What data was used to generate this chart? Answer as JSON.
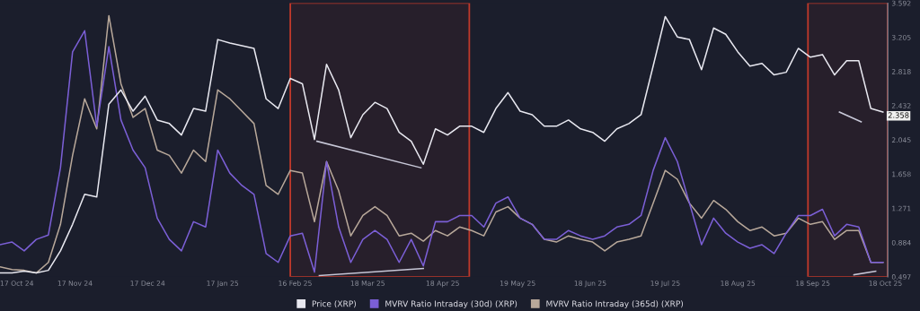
{
  "chart_data": {
    "type": "line",
    "legend": "bottom",
    "grid": false,
    "tick_labels": "xy",
    "x": [
      "2024-10-17",
      "2024-10-22",
      "2024-10-27",
      "2024-11-01",
      "2024-11-06",
      "2024-11-11",
      "2024-11-16",
      "2024-11-21",
      "2024-11-26",
      "2024-12-01",
      "2024-12-06",
      "2024-12-11",
      "2024-12-16",
      "2024-12-21",
      "2024-12-26",
      "2024-12-31",
      "2025-01-05",
      "2025-01-10",
      "2025-01-15",
      "2025-01-20",
      "2025-01-25",
      "2025-01-30",
      "2025-02-04",
      "2025-02-09",
      "2025-02-14",
      "2025-02-19",
      "2025-02-24",
      "2025-03-01",
      "2025-03-06",
      "2025-03-11",
      "2025-03-16",
      "2025-03-21",
      "2025-03-26",
      "2025-03-31",
      "2025-04-05",
      "2025-04-10",
      "2025-04-15",
      "2025-04-20",
      "2025-04-25",
      "2025-04-30",
      "2025-05-05",
      "2025-05-10",
      "2025-05-15",
      "2025-05-20",
      "2025-05-25",
      "2025-05-30",
      "2025-06-04",
      "2025-06-09",
      "2025-06-14",
      "2025-06-19",
      "2025-06-24",
      "2025-06-29",
      "2025-07-04",
      "2025-07-09",
      "2025-07-14",
      "2025-07-19",
      "2025-07-24",
      "2025-07-29",
      "2025-08-03",
      "2025-08-08",
      "2025-08-13",
      "2025-08-18",
      "2025-08-23",
      "2025-08-28",
      "2025-09-02",
      "2025-09-07",
      "2025-09-12",
      "2025-09-17",
      "2025-09-22",
      "2025-09-27",
      "2025-10-02",
      "2025-10-07",
      "2025-10-12",
      "2025-10-17"
    ],
    "series": [
      {
        "name": "MVRV Ratio Intraday (365d) (XRP)",
        "color": "#b8a89a",
        "values": [
          0.61,
          0.58,
          0.57,
          0.54,
          0.66,
          1.09,
          1.87,
          2.51,
          2.17,
          3.45,
          2.68,
          2.3,
          2.4,
          1.93,
          1.87,
          1.67,
          1.93,
          1.8,
          2.61,
          2.51,
          2.37,
          2.23,
          1.53,
          1.43,
          1.7,
          1.67,
          1.12,
          1.8,
          1.47,
          0.96,
          1.19,
          1.29,
          1.19,
          0.96,
          0.99,
          0.9,
          1.02,
          0.96,
          1.06,
          1.02,
          0.96,
          1.23,
          1.29,
          1.16,
          1.09,
          0.92,
          0.89,
          0.96,
          0.92,
          0.89,
          0.79,
          0.89,
          0.92,
          0.96,
          1.33,
          1.7,
          1.6,
          1.33,
          1.16,
          1.36,
          1.26,
          1.12,
          1.02,
          1.06,
          0.96,
          0.99,
          1.16,
          1.09,
          1.12,
          0.92,
          1.02,
          1.02,
          0.66,
          0.66
        ]
      },
      {
        "name": "MVRV Ratio Intraday (30d) (XRP)",
        "color": "#7b5fd6",
        "values": [
          0.86,
          0.89,
          0.79,
          0.92,
          0.97,
          1.73,
          3.04,
          3.28,
          2.2,
          3.1,
          2.27,
          1.93,
          1.73,
          1.16,
          0.92,
          0.79,
          1.12,
          1.06,
          1.93,
          1.67,
          1.53,
          1.43,
          0.76,
          0.66,
          0.96,
          0.99,
          0.55,
          1.8,
          1.06,
          0.66,
          0.92,
          1.02,
          0.92,
          0.66,
          0.92,
          0.62,
          1.12,
          1.12,
          1.19,
          1.19,
          1.06,
          1.33,
          1.4,
          1.16,
          1.09,
          0.92,
          0.92,
          1.02,
          0.96,
          0.92,
          0.96,
          1.06,
          1.09,
          1.19,
          1.7,
          2.07,
          1.8,
          1.33,
          0.86,
          1.16,
          0.99,
          0.89,
          0.82,
          0.86,
          0.76,
          0.99,
          1.19,
          1.19,
          1.26,
          0.96,
          1.09,
          1.06,
          0.66,
          0.66
        ]
      },
      {
        "name": "Price (XRP)",
        "color": "#e8e8f0",
        "values": [
          0.54,
          0.54,
          0.56,
          0.54,
          0.57,
          0.79,
          1.09,
          1.43,
          1.4,
          2.45,
          2.61,
          2.37,
          2.54,
          2.27,
          2.23,
          2.1,
          2.4,
          2.37,
          3.18,
          3.14,
          3.11,
          3.08,
          2.51,
          2.4,
          2.74,
          2.68,
          2.05,
          2.9,
          2.61,
          2.07,
          2.33,
          2.47,
          2.4,
          2.13,
          2.03,
          1.77,
          2.17,
          2.1,
          2.2,
          2.2,
          2.13,
          2.4,
          2.58,
          2.37,
          2.33,
          2.2,
          2.2,
          2.27,
          2.17,
          2.13,
          2.03,
          2.17,
          2.23,
          2.33,
          2.88,
          3.44,
          3.21,
          3.18,
          2.84,
          3.31,
          3.24,
          3.04,
          2.88,
          2.91,
          2.78,
          2.81,
          3.08,
          2.98,
          3.01,
          2.78,
          2.94,
          2.94,
          2.4,
          2.36
        ]
      },
      {
        "type": "line",
        "color": "#c8c8d8",
        "x": [
          "2025-02-25",
          "2025-04-09"
        ],
        "values": [
          2.03,
          1.73
        ]
      },
      {
        "type": "line",
        "color": "#c8c8d8",
        "x": [
          "2025-02-26",
          "2025-04-10"
        ],
        "values": [
          0.51,
          0.59
        ]
      },
      {
        "type": "line",
        "color": "#c8c8d8",
        "x": [
          "2025-09-29",
          "2025-10-08"
        ],
        "values": [
          2.36,
          2.25
        ]
      },
      {
        "type": "line",
        "color": "#c8c8d8",
        "x": [
          "2025-10-05",
          "2025-10-14"
        ],
        "values": [
          0.52,
          0.56
        ]
      }
    ],
    "bands": [
      {
        "axis": "x",
        "from": "2025-02-14",
        "to": "2025-04-29",
        "color": "#c0392b"
      },
      {
        "axis": "x",
        "from": "2025-09-16",
        "to": "2025-10-19",
        "color": "#c0392b"
      }
    ],
    "annotations": [
      {
        "text": "2.358",
        "x": "2025-10-17",
        "y": 2.358
      }
    ],
    "xlim": [
      "2024-10-17",
      "2025-10-19"
    ],
    "xticks": [
      {
        "value": "2024-10-17",
        "label": "17 Oct 24"
      },
      {
        "value": "2024-11-17",
        "label": "17 Nov 24"
      },
      {
        "value": "2024-12-17",
        "label": "17 Dec 24"
      },
      {
        "value": "2025-01-17",
        "label": "17 Jan 25"
      },
      {
        "value": "2025-02-16",
        "label": "16 Feb 25"
      },
      {
        "value": "2025-03-18",
        "label": "18 Mar 25"
      },
      {
        "value": "2025-04-18",
        "label": "18 Apr 25"
      },
      {
        "value": "2025-05-19",
        "label": "19 May 25"
      },
      {
        "value": "2025-06-18",
        "label": "18 Jun 25"
      },
      {
        "value": "2025-07-19",
        "label": "19 Jul 25"
      },
      {
        "value": "2025-08-18",
        "label": "18 Aug 25"
      },
      {
        "value": "2025-09-18",
        "label": "18 Sep 25"
      },
      {
        "value": "2025-10-18",
        "label": "18 Oct 25"
      }
    ],
    "ylim": [
      0.497,
      3.592
    ],
    "yticks": [
      0.497,
      0.884,
      1.271,
      1.658,
      2.045,
      2.432,
      2.818,
      3.205,
      3.592
    ]
  }
}
